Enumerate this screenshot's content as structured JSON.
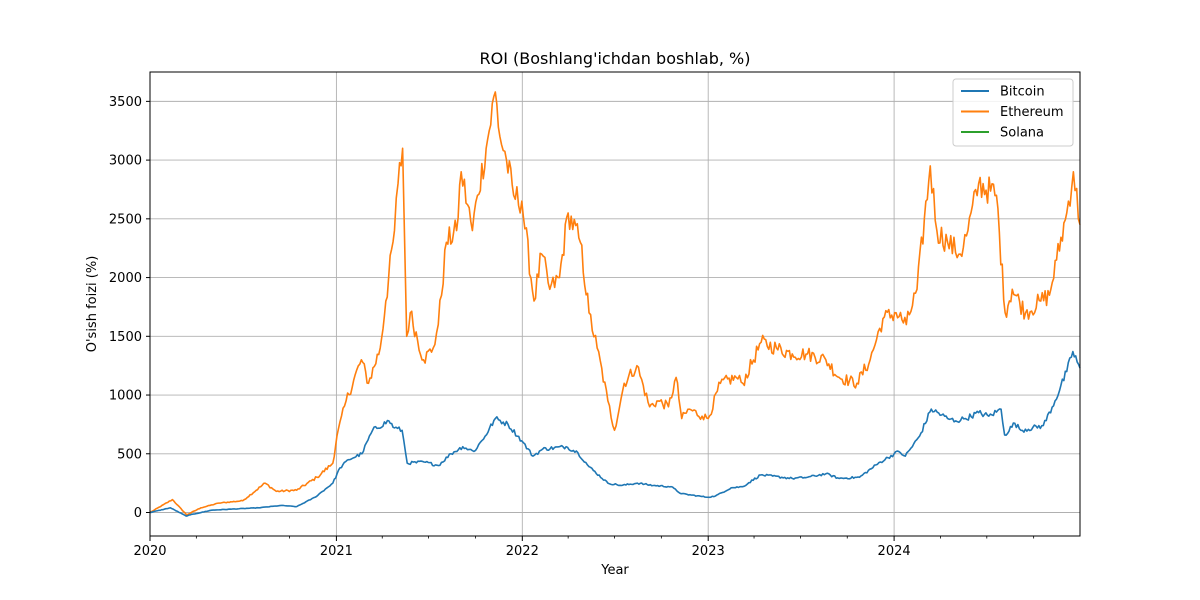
{
  "chart_data": {
    "type": "line",
    "title": "ROI (Boshlang'ichdan boshlab, %)",
    "xlabel": "Year",
    "ylabel": "O'sish foizi (%)",
    "xlim": [
      "2020-01-01",
      "2024-12-31"
    ],
    "ylim": [
      -200,
      3750
    ],
    "x_ticks": [
      "2020",
      "2021",
      "2022",
      "2023",
      "2024"
    ],
    "y_ticks": [
      0,
      500,
      1000,
      1500,
      2000,
      2500,
      3000,
      3500
    ],
    "grid": true,
    "legend": "top-right",
    "series": [
      {
        "name": "Bitcoin",
        "color": "#1f77b4",
        "x": [
          "2020-01-01",
          "2020-02-10",
          "2020-03-12",
          "2020-03-20",
          "2020-05-01",
          "2020-06-15",
          "2020-08-01",
          "2020-09-15",
          "2020-10-15",
          "2020-11-20",
          "2020-12-25",
          "2021-01-08",
          "2021-01-25",
          "2021-02-20",
          "2021-03-13",
          "2021-04-14",
          "2021-04-25",
          "2021-05-10",
          "2021-05-20",
          "2021-06-22",
          "2021-07-20",
          "2021-08-14",
          "2021-09-06",
          "2021-09-28",
          "2021-10-20",
          "2021-11-09",
          "2021-12-04",
          "2021-12-31",
          "2022-01-22",
          "2022-02-10",
          "2022-03-28",
          "2022-04-20",
          "2022-05-12",
          "2022-06-18",
          "2022-07-15",
          "2022-08-15",
          "2022-09-15",
          "2022-10-20",
          "2022-11-09",
          "2022-12-31",
          "2023-01-15",
          "2023-02-15",
          "2023-03-10",
          "2023-04-14",
          "2023-06-15",
          "2023-07-15",
          "2023-08-20",
          "2023-09-15",
          "2023-10-25",
          "2023-12-05",
          "2024-01-10",
          "2024-01-23",
          "2024-02-20",
          "2024-03-14",
          "2024-04-15",
          "2024-05-01",
          "2024-05-20",
          "2024-06-15",
          "2024-07-05",
          "2024-07-29",
          "2024-08-05",
          "2024-08-25",
          "2024-09-06",
          "2024-10-20",
          "2024-11-12",
          "2024-12-05",
          "2024-12-17",
          "2024-12-31"
        ],
        "values": [
          0,
          40,
          -30,
          -20,
          20,
          30,
          40,
          60,
          50,
          130,
          250,
          380,
          450,
          500,
          700,
          780,
          720,
          700,
          420,
          430,
          400,
          500,
          560,
          520,
          650,
          800,
          750,
          610,
          480,
          540,
          560,
          510,
          390,
          250,
          230,
          250,
          230,
          220,
          160,
          130,
          140,
          210,
          220,
          320,
          290,
          300,
          330,
          290,
          300,
          430,
          520,
          480,
          650,
          880,
          800,
          780,
          800,
          850,
          820,
          880,
          660,
          760,
          700,
          740,
          950,
          1200,
          1370,
          1230
        ]
      },
      {
        "name": "Ethereum",
        "color": "#ff7f0e",
        "x": [
          "2020-01-01",
          "2020-02-14",
          "2020-03-13",
          "2020-04-10",
          "2020-05-15",
          "2020-07-01",
          "2020-08-14",
          "2020-09-05",
          "2020-10-15",
          "2020-11-24",
          "2020-12-25",
          "2021-01-02",
          "2021-01-20",
          "2021-02-19",
          "2021-03-05",
          "2021-03-28",
          "2021-04-08",
          "2021-04-25",
          "2021-05-02",
          "2021-05-11",
          "2021-05-19",
          "2021-05-26",
          "2021-06-21",
          "2021-07-10",
          "2021-07-20",
          "2021-08-05",
          "2021-08-25",
          "2021-09-03",
          "2021-09-25",
          "2021-10-05",
          "2021-10-22",
          "2021-11-09",
          "2021-11-18",
          "2021-12-01",
          "2021-12-15",
          "2021-12-31",
          "2022-01-24",
          "2022-02-08",
          "2022-02-24",
          "2022-03-15",
          "2022-04-01",
          "2022-04-25",
          "2022-05-12",
          "2022-05-28",
          "2022-06-18",
          "2022-07-01",
          "2022-07-20",
          "2022-08-14",
          "2022-09-08",
          "2022-09-25",
          "2022-10-15",
          "2022-10-30",
          "2022-11-10",
          "2022-11-25",
          "2022-12-20",
          "2023-01-01",
          "2023-01-25",
          "2023-02-25",
          "2023-03-10",
          "2023-04-15",
          "2023-05-15",
          "2023-06-15",
          "2023-07-15",
          "2023-08-20",
          "2023-09-15",
          "2023-10-20",
          "2023-11-15",
          "2023-12-10",
          "2024-01-05",
          "2024-01-25",
          "2024-02-15",
          "2024-03-12",
          "2024-03-25",
          "2024-04-15",
          "2024-05-10",
          "2024-05-25",
          "2024-06-15",
          "2024-07-20",
          "2024-08-06",
          "2024-08-20",
          "2024-09-15",
          "2024-10-15",
          "2024-11-01",
          "2024-11-15",
          "2024-12-05",
          "2024-12-18",
          "2024-12-31"
        ],
        "values": [
          0,
          110,
          -20,
          40,
          80,
          100,
          250,
          180,
          190,
          300,
          420,
          650,
          950,
          1300,
          1100,
          1400,
          1800,
          2400,
          2800,
          3100,
          1500,
          1700,
          1300,
          1400,
          1600,
          2300,
          2400,
          2900,
          2400,
          2700,
          3100,
          3580,
          3200,
          3000,
          2700,
          2650,
          1800,
          2200,
          1900,
          2000,
          2550,
          2300,
          1700,
          1400,
          950,
          700,
          1100,
          1250,
          900,
          950,
          900,
          1150,
          800,
          880,
          820,
          800,
          1100,
          1150,
          1100,
          1450,
          1400,
          1350,
          1350,
          1300,
          1150,
          1100,
          1300,
          1650,
          1700,
          1600,
          1900,
          2950,
          2400,
          2300,
          2200,
          2400,
          2800,
          2700,
          1700,
          1900,
          1700,
          1800,
          1850,
          2150,
          2550,
          2900,
          2450
        ]
      },
      {
        "name": "Solana",
        "color": "#2ca02c",
        "x": [],
        "values": []
      }
    ]
  }
}
